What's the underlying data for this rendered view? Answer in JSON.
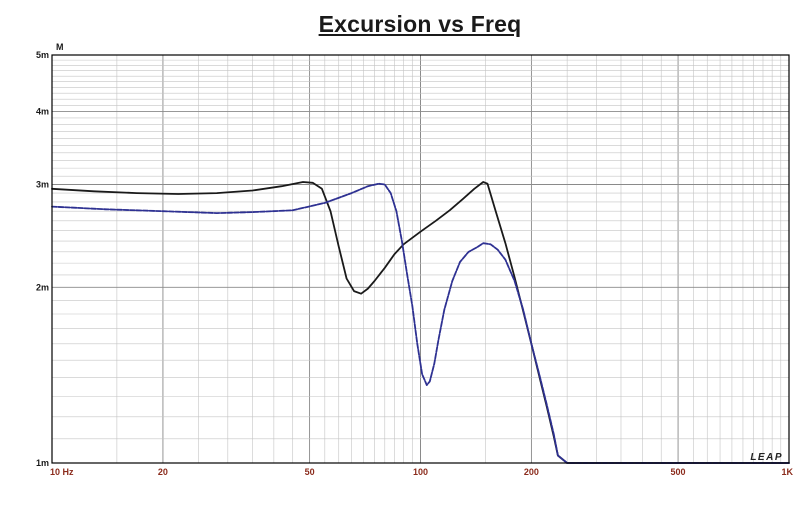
{
  "chart_data": {
    "type": "line",
    "title": "Excursion vs Freq",
    "xlabel": "",
    "ylabel": "",
    "y_unit_label": "M",
    "x_scale": "log",
    "y_scale": "log",
    "xlim": [
      10,
      1000
    ],
    "ylim": [
      0.001,
      0.005
    ],
    "grid": true,
    "x_ticks": [
      {
        "value": 10,
        "label": "10  Hz"
      },
      {
        "value": 20,
        "label": "20"
      },
      {
        "value": 50,
        "label": "50"
      },
      {
        "value": 100,
        "label": "100"
      },
      {
        "value": 200,
        "label": "200"
      },
      {
        "value": 500,
        "label": "500"
      },
      {
        "value": 1000,
        "label": "1K"
      }
    ],
    "y_ticks": [
      {
        "value": 0.001,
        "label": "1m"
      },
      {
        "value": 0.002,
        "label": "2m"
      },
      {
        "value": 0.003,
        "label": "3m"
      },
      {
        "value": 0.004,
        "label": "4m"
      },
      {
        "value": 0.005,
        "label": "5m"
      }
    ],
    "watermark": "LEAP",
    "series": [
      {
        "color": "#1a1a1a",
        "x": [
          10,
          13,
          17,
          22,
          28,
          35,
          42,
          48,
          51,
          54,
          57,
          60,
          63,
          66,
          69,
          72,
          75,
          80,
          85,
          90,
          100,
          110,
          120,
          130,
          140,
          148,
          152,
          160,
          170,
          180,
          190,
          200,
          210,
          220,
          230,
          236,
          250,
          1000
        ],
        "y": [
          0.00295,
          0.00292,
          0.0029,
          0.00289,
          0.0029,
          0.00293,
          0.00298,
          0.00303,
          0.00302,
          0.00295,
          0.0027,
          0.00235,
          0.00207,
          0.00197,
          0.00195,
          0.00199,
          0.00205,
          0.00216,
          0.00228,
          0.00237,
          0.00249,
          0.0026,
          0.00271,
          0.00283,
          0.00295,
          0.00303,
          0.00301,
          0.0027,
          0.00238,
          0.00208,
          0.00182,
          0.0016,
          0.00141,
          0.00125,
          0.00111,
          0.00103,
          0.001,
          0.001
        ]
      },
      {
        "color": "#2e3192",
        "dashed": true,
        "x": [
          10,
          14,
          20,
          28,
          35,
          45,
          55,
          65,
          72,
          77,
          80,
          83,
          86,
          89,
          92,
          95,
          98,
          101,
          104,
          106,
          109,
          112,
          116,
          122,
          128,
          135,
          142,
          148,
          155,
          162,
          170,
          180,
          190,
          200,
          210,
          220,
          230,
          236,
          250,
          1000
        ],
        "y": [
          0.00275,
          0.00272,
          0.0027,
          0.00268,
          0.00269,
          0.00271,
          0.00279,
          0.0029,
          0.00298,
          0.00301,
          0.003,
          0.0029,
          0.0027,
          0.0024,
          0.0021,
          0.00186,
          0.0016,
          0.00142,
          0.00136,
          0.00138,
          0.00148,
          0.00163,
          0.00183,
          0.00205,
          0.00221,
          0.0023,
          0.00234,
          0.00238,
          0.00237,
          0.00232,
          0.00223,
          0.00205,
          0.00183,
          0.0016,
          0.00142,
          0.00126,
          0.00112,
          0.00103,
          0.001,
          0.001
        ]
      }
    ]
  }
}
